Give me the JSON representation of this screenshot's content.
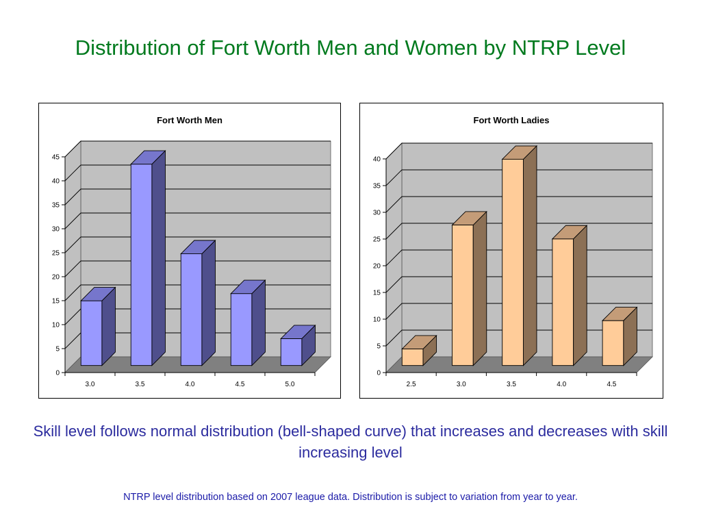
{
  "slide": {
    "title": "Distribution of Fort Worth Men and Women by NTRP Level",
    "caption": "Skill level follows normal distribution (bell-shaped curve) that increases and decreases with skill increasing level",
    "footnote": "NTRP level distribution based on 2007 league data.  Distribution is subject to variation from year to year."
  },
  "chart_data": [
    {
      "type": "bar",
      "title": "Fort Worth Men",
      "categories": [
        "3.0",
        "3.5",
        "4.0",
        "4.5",
        "5.0"
      ],
      "values": [
        13.5,
        42,
        23.3,
        15,
        5.6
      ],
      "ylim": [
        0,
        45
      ],
      "yticks": [
        0,
        5,
        10,
        15,
        20,
        25,
        30,
        35,
        40,
        45
      ],
      "xlabel": "",
      "ylabel": "",
      "grid": true,
      "legend": "none",
      "colors": {
        "front": "#9999ff",
        "side": "#4f4f8c",
        "top": "#7676cc"
      }
    },
    {
      "type": "bar",
      "title": "Fort Worth Ladies",
      "categories": [
        "2.5",
        "3.0",
        "3.5",
        "4.0",
        "4.5"
      ],
      "values": [
        3.1,
        26.3,
        38.6,
        23.7,
        8.4
      ],
      "ylim": [
        0,
        40
      ],
      "yticks": [
        0,
        5,
        10,
        15,
        20,
        25,
        30,
        35,
        40
      ],
      "xlabel": "",
      "ylabel": "",
      "grid": true,
      "legend": "none",
      "colors": {
        "front": "#ffcc99",
        "side": "#8c7055",
        "top": "#c49c78"
      }
    }
  ],
  "theme": {
    "wall": "#c0c0c0",
    "floor": "#808080",
    "gridline": "#000000"
  }
}
